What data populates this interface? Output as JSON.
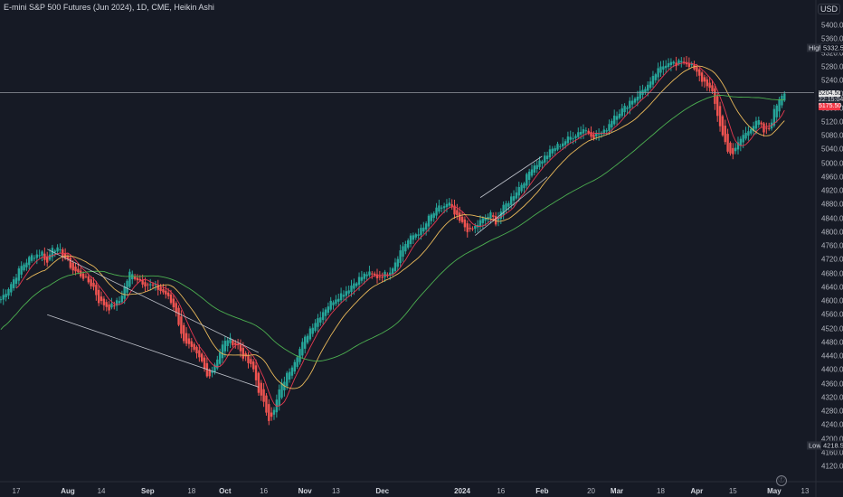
{
  "header": {
    "title": "E-mini S&P 500 Futures (Jun 2024), 1D, CME, Heikin Ashi",
    "currency": "USD"
  },
  "markers": {
    "high_label": "High",
    "high_value": "5332.50",
    "low_label": "Low",
    "low_value": "4218.50",
    "last_price": "5204.50",
    "price_box_2": "22:15:04",
    "price_box_3": "5175.50"
  },
  "colors": {
    "background": "#161a25",
    "up_candle": "#26a69a",
    "down_candle": "#ef5350",
    "ma_fast": "#e53950",
    "ma_mid": "#e8b85a",
    "ma_slow": "#4caf50",
    "trend_lines": "#d1d4dc"
  },
  "tv_logo_glyph": "ⓕ",
  "chart_data": {
    "type": "candlestick",
    "chart_style": "Heikin Ashi",
    "grid": false,
    "y_ticks": [
      4120,
      4160,
      4200,
      4240,
      4280,
      4320,
      4360,
      4400,
      4440,
      4480,
      4520,
      4560,
      4600,
      4640,
      4680,
      4720,
      4760,
      4800,
      4840,
      4880,
      4920,
      4960,
      5000,
      5040,
      5080,
      5120,
      5160,
      5200,
      5240,
      5280,
      5320,
      5360,
      5400
    ],
    "ylim": [
      4110,
      5420
    ],
    "x_ticks": [
      {
        "label": "17",
        "day": -20
      },
      {
        "label": "Aug",
        "day": 0,
        "bold": true
      },
      {
        "label": "14",
        "day": 13
      },
      {
        "label": "Sep",
        "day": 31,
        "bold": true
      },
      {
        "label": "18",
        "day": 48
      },
      {
        "label": "Oct",
        "day": 61,
        "bold": true
      },
      {
        "label": "16",
        "day": 76
      },
      {
        "label": "Nov",
        "day": 92,
        "bold": true
      },
      {
        "label": "13",
        "day": 104
      },
      {
        "label": "Dec",
        "day": 122,
        "bold": true
      },
      {
        "label": "2024",
        "day": 153,
        "bold": true
      },
      {
        "label": "16",
        "day": 168
      },
      {
        "label": "Feb",
        "day": 184,
        "bold": true
      },
      {
        "label": "20",
        "day": 203
      },
      {
        "label": "Mar",
        "day": 213,
        "bold": true
      },
      {
        "label": "18",
        "day": 230
      },
      {
        "label": "Apr",
        "day": 244,
        "bold": true
      },
      {
        "label": "15",
        "day": 258
      },
      {
        "label": "May",
        "day": 274,
        "bold": true
      },
      {
        "label": "13",
        "day": 286
      }
    ],
    "close_anchors": [
      [
        -26,
        4605
      ],
      [
        -22,
        4650
      ],
      [
        -18,
        4700
      ],
      [
        -14,
        4730
      ],
      [
        -10,
        4740
      ],
      [
        -8,
        4710
      ],
      [
        -6,
        4760
      ],
      [
        -2,
        4735
      ],
      [
        2,
        4690
      ],
      [
        6,
        4670
      ],
      [
        10,
        4640
      ],
      [
        12,
        4600
      ],
      [
        16,
        4580
      ],
      [
        20,
        4600
      ],
      [
        24,
        4680
      ],
      [
        28,
        4660
      ],
      [
        30,
        4650
      ],
      [
        34,
        4640
      ],
      [
        38,
        4620
      ],
      [
        42,
        4570
      ],
      [
        44,
        4500
      ],
      [
        48,
        4460
      ],
      [
        52,
        4420
      ],
      [
        54,
        4380
      ],
      [
        56,
        4400
      ],
      [
        60,
        4470
      ],
      [
        62,
        4490
      ],
      [
        66,
        4470
      ],
      [
        68,
        4440
      ],
      [
        72,
        4400
      ],
      [
        74,
        4340
      ],
      [
        78,
        4260
      ],
      [
        80,
        4280
      ],
      [
        82,
        4340
      ],
      [
        86,
        4400
      ],
      [
        90,
        4460
      ],
      [
        94,
        4520
      ],
      [
        96,
        4540
      ],
      [
        100,
        4580
      ],
      [
        104,
        4610
      ],
      [
        108,
        4630
      ],
      [
        112,
        4660
      ],
      [
        116,
        4680
      ],
      [
        120,
        4670
      ],
      [
        124,
        4680
      ],
      [
        126,
        4700
      ],
      [
        130,
        4760
      ],
      [
        134,
        4790
      ],
      [
        138,
        4810
      ],
      [
        140,
        4840
      ],
      [
        144,
        4870
      ],
      [
        148,
        4880
      ],
      [
        150,
        4850
      ],
      [
        152,
        4830
      ],
      [
        156,
        4800
      ],
      [
        160,
        4830
      ],
      [
        164,
        4850
      ],
      [
        166,
        4830
      ],
      [
        168,
        4860
      ],
      [
        172,
        4900
      ],
      [
        176,
        4940
      ],
      [
        178,
        4960
      ],
      [
        180,
        4990
      ],
      [
        184,
        5010
      ],
      [
        188,
        5040
      ],
      [
        192,
        5060
      ],
      [
        196,
        5080
      ],
      [
        200,
        5100
      ],
      [
        204,
        5080
      ],
      [
        208,
        5090
      ],
      [
        212,
        5140
      ],
      [
        216,
        5160
      ],
      [
        218,
        5180
      ],
      [
        220,
        5190
      ],
      [
        224,
        5220
      ],
      [
        226,
        5230
      ],
      [
        228,
        5260
      ],
      [
        232,
        5290
      ],
      [
        234,
        5300
      ],
      [
        236,
        5280
      ],
      [
        238,
        5300
      ],
      [
        242,
        5280
      ],
      [
        244,
        5260
      ],
      [
        246,
        5240
      ],
      [
        248,
        5230
      ],
      [
        250,
        5200
      ],
      [
        252,
        5140
      ],
      [
        254,
        5080
      ],
      [
        256,
        5040
      ],
      [
        258,
        5020
      ],
      [
        260,
        5060
      ],
      [
        262,
        5080
      ],
      [
        264,
        5100
      ],
      [
        266,
        5110
      ],
      [
        268,
        5120
      ],
      [
        270,
        5090
      ],
      [
        272,
        5100
      ],
      [
        274,
        5150
      ],
      [
        276,
        5190
      ],
      [
        278,
        5210
      ]
    ],
    "moving_averages": [
      {
        "name": "fast",
        "style": "thin red"
      },
      {
        "name": "mid",
        "style": "thin orange"
      },
      {
        "name": "slow",
        "style": "thin green"
      }
    ]
  }
}
